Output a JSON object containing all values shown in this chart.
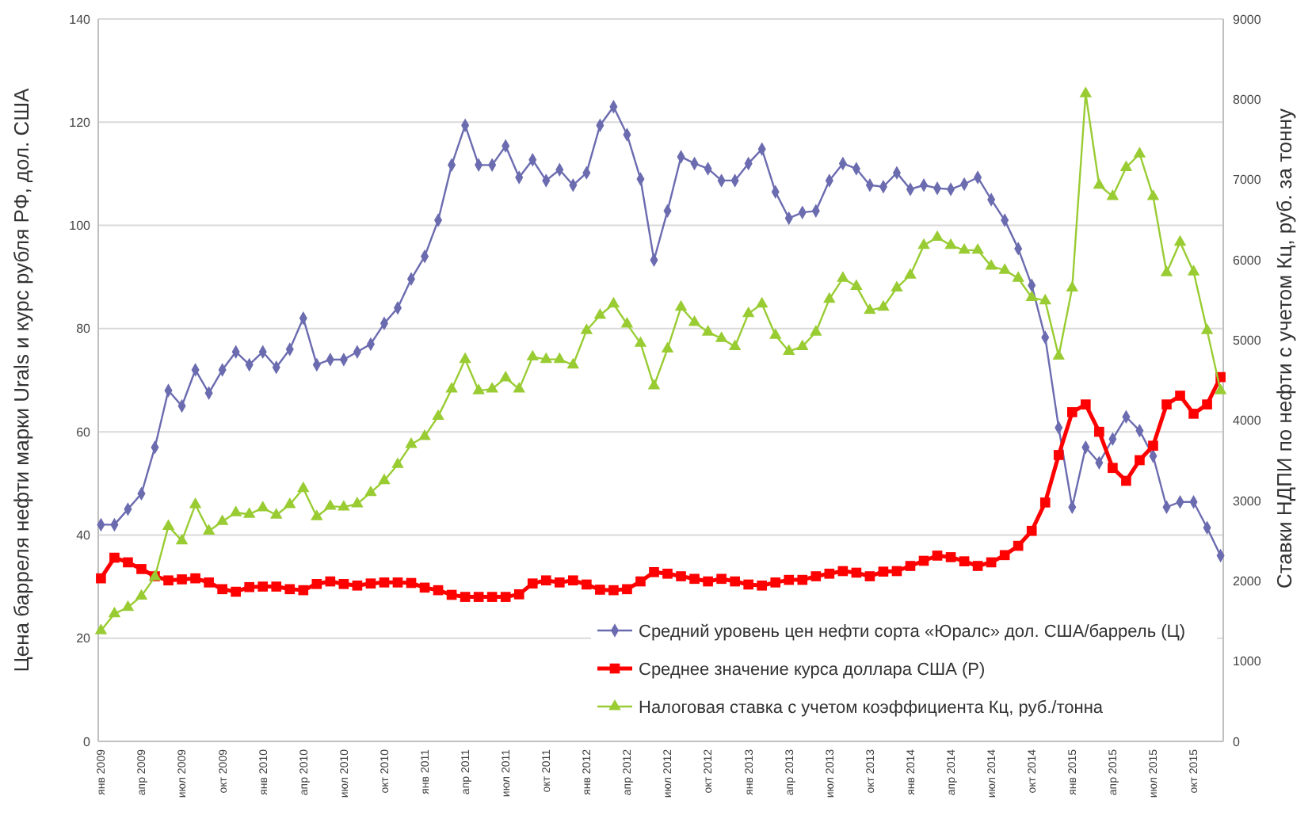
{
  "chart_data": {
    "type": "line",
    "ylabel": "Цена барреля нефти марки Urals и курс рубля РФ, дол. США",
    "y2label": "Ставки НДПИ по нефти с учетом Кц, руб. за тонну",
    "categories": [
      "янв 2009",
      null,
      null,
      "апр 2009",
      null,
      null,
      "июл 2009",
      null,
      null,
      "окт 2009",
      null,
      null,
      "янв 2010",
      null,
      null,
      "апр 2010",
      null,
      null,
      "июл 2010",
      null,
      null,
      "окт 2010",
      null,
      null,
      "янв 2011",
      null,
      null,
      "апр 2011",
      null,
      null,
      "июл 2011",
      null,
      null,
      "окт 2011",
      null,
      null,
      "янв 2012",
      null,
      null,
      "апр 2012",
      null,
      null,
      "июл 2012",
      null,
      null,
      "окт 2012",
      null,
      null,
      "янв 2013",
      null,
      null,
      "апр 2013",
      null,
      null,
      "июл 2013",
      null,
      null,
      "окт 2013",
      null,
      null,
      "янв 2014",
      null,
      null,
      "апр 2014",
      null,
      null,
      "июл 2014",
      null,
      null,
      "окт 2014",
      null,
      null,
      "янв 2015",
      null,
      null,
      "апр 2015",
      null,
      null,
      "июл 2015",
      null,
      null,
      "окт 2015",
      null,
      null
    ],
    "series": [
      {
        "name": "Средний уровень цен нефти сорта «Юралс» дол. США/баррель (Ц)",
        "color": "#6b6bb0",
        "marker": "diamond",
        "values": [
          42,
          42,
          45,
          48,
          57,
          68,
          65,
          72,
          67.5,
          72,
          75.5,
          73,
          75.5,
          72.5,
          76,
          82,
          73,
          74,
          74,
          75.5,
          77,
          81,
          84,
          89.6,
          94,
          101,
          111.7,
          119.4,
          111.7,
          111.7,
          115.4,
          109.3,
          112.7,
          108.7,
          110.8,
          107.8,
          110.2,
          119.4,
          123,
          117.6,
          109,
          93.3,
          102.8,
          113.3,
          112,
          111,
          108.7,
          108.7,
          112,
          114.8,
          106.5,
          101.4,
          102.5,
          102.8,
          108.7,
          112,
          111,
          107.8,
          107.5,
          110.2,
          107,
          107.8,
          107.2,
          107,
          108,
          109.3,
          105,
          101,
          95.5,
          88.4,
          78.3,
          60.8,
          45.4,
          57,
          54,
          58.6,
          62.9,
          60.2,
          55.3,
          45.4,
          46.4,
          46.4,
          41.4,
          36
        ]
      },
      {
        "name": "Среднее значение курса доллара США (Р)",
        "color": "#ff0000",
        "marker": "square",
        "values": [
          31.6,
          35.6,
          34.7,
          33.4,
          32,
          31.2,
          31.4,
          31.6,
          30.8,
          29.5,
          29,
          29.9,
          30,
          30,
          29.5,
          29.3,
          30.5,
          31,
          30.5,
          30.2,
          30.6,
          30.8,
          30.8,
          30.7,
          29.8,
          29.3,
          28.4,
          28,
          28,
          28,
          28,
          28.5,
          30.6,
          31.2,
          30.8,
          31.2,
          30.4,
          29.4,
          29.3,
          29.5,
          31,
          32.8,
          32.5,
          32,
          31.5,
          31,
          31.5,
          31,
          30.4,
          30.2,
          30.8,
          31.3,
          31.3,
          32,
          32.5,
          33,
          32.7,
          32,
          32.9,
          33,
          34,
          35,
          36,
          35.7,
          34.9,
          34,
          34.7,
          36.1,
          37.9,
          40.8,
          46.3,
          55.5,
          63.8,
          65.3,
          60,
          53,
          50.5,
          54.5,
          57.3,
          65.3,
          67,
          63.5,
          65.3,
          70.6
        ]
      },
      {
        "name": "Налоговая ставка с учетом коэффициента Кц, руб./тонна",
        "color": "#99cc33",
        "marker": "triangle",
        "axis": "y2",
        "values": [
          1380,
          1590,
          1670,
          1810,
          2050,
          2680,
          2500,
          2950,
          2620,
          2740,
          2850,
          2830,
          2910,
          2820,
          2950,
          3150,
          2800,
          2930,
          2920,
          2960,
          3100,
          3250,
          3450,
          3700,
          3800,
          4050,
          4390,
          4760,
          4370,
          4390,
          4530,
          4390,
          4790,
          4760,
          4760,
          4690,
          5120,
          5310,
          5450,
          5200,
          4960,
          4430,
          4890,
          5410,
          5220,
          5100,
          5020,
          4920,
          5330,
          5450,
          5060,
          4860,
          4920,
          5100,
          5510,
          5770,
          5670,
          5370,
          5410,
          5650,
          5810,
          6180,
          6280,
          6180,
          6120,
          6120,
          5920,
          5870,
          5770,
          5530,
          5490,
          4800,
          5650,
          8070,
          6930,
          6790,
          7150,
          7320,
          6790,
          5840,
          6220,
          5850,
          5120,
          4370
        ]
      }
    ],
    "ylim": [
      0,
      140
    ],
    "yticks": [
      0,
      20,
      40,
      60,
      80,
      100,
      120,
      140
    ],
    "y2lim": [
      0,
      9000
    ],
    "y2ticks": [
      0,
      1000,
      2000,
      3000,
      4000,
      5000,
      6000,
      7000,
      8000,
      9000
    ],
    "grid": "y",
    "legend": "bottom right"
  }
}
